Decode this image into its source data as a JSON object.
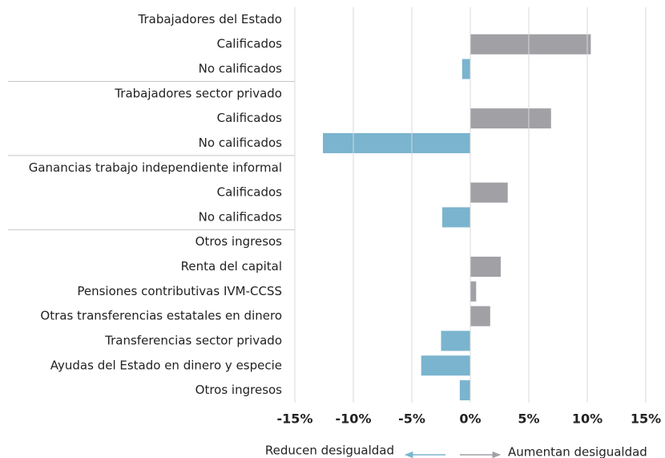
{
  "chart_data": {
    "type": "bar",
    "orientation": "horizontal",
    "categories": [
      "Trabajadores del Estado",
      "Calificados",
      "No calificados",
      "Trabajadores sector privado",
      "Calificados",
      "No calificados",
      "Ganancias trabajo independiente informal",
      "Calificados",
      "No calificados",
      "Otros ingresos",
      "Renta del capital",
      "Pensiones contributivas IVM-CCSS",
      "Otras transferencias estatales en dinero",
      "Transferencias sector privado",
      "Ayudas del Estado en dinero y especie",
      "Otros ingresos"
    ],
    "values": [
      null,
      10.3,
      -0.7,
      null,
      6.9,
      -12.6,
      null,
      3.2,
      -2.4,
      null,
      2.6,
      0.5,
      1.7,
      -2.5,
      -4.2,
      -0.9
    ],
    "color": "#a0a0a5",
    "negative_color": "#7ab4cf",
    "xlim": [
      -15,
      15
    ],
    "xticks": [
      {
        "value": -15,
        "label": "-15%"
      },
      {
        "value": -10,
        "label": "-10%"
      },
      {
        "value": -5,
        "label": "-5%"
      },
      {
        "value": 0,
        "label": "0%"
      },
      {
        "value": 5,
        "label": "5%"
      },
      {
        "value": 10,
        "label": "10%"
      },
      {
        "value": 15,
        "label": "15%"
      }
    ],
    "grid": true,
    "legend": [
      "Reducen desigualdad",
      "Aumentan desigualdad"
    ]
  }
}
